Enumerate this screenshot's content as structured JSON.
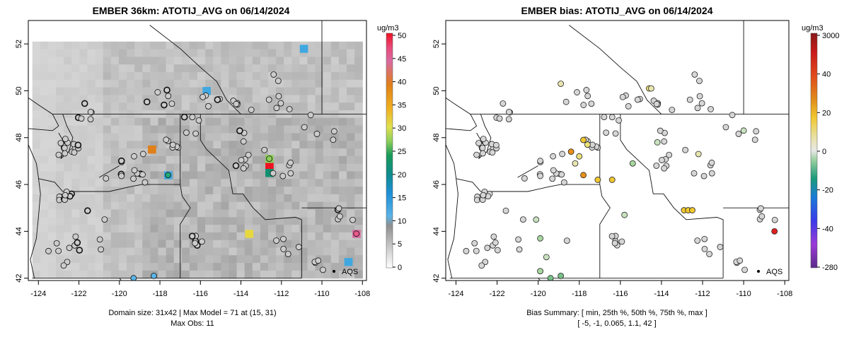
{
  "left_panel": {
    "title": "EMBER 36km: ATOTIJ_AVG on 06/14/2024",
    "colorbar_unit": "ug/m3",
    "colorbar_ticks": [
      "50",
      "45",
      "40",
      "35",
      "30",
      "25",
      "20",
      "15",
      "10",
      "5",
      "0"
    ],
    "caption_line1": "Domain size: 31x42 | Max Model = 71 at (15, 31)",
    "caption_line2": "Max Obs: 11",
    "network_label": "AQS"
  },
  "right_panel": {
    "title": "EMBER bias: ATOTIJ_AVG on 06/14/2024",
    "colorbar_unit": "ug/m3",
    "colorbar_ticks": [
      "3000",
      "40",
      "20",
      "0",
      "-20",
      "-40",
      "-280"
    ],
    "caption_line1": "Bias Summary: [ min, 25th %, 50th %, 75th %, max ]",
    "caption_line2": "[ -5,   -1,   0.065,   1.1,   42 ]",
    "network_label": "AQS"
  },
  "colors": {
    "land": "#d3d3d3",
    "point_face": "#cccccc",
    "border": "#222222"
  },
  "chart_data": [
    {
      "type": "heatmap",
      "title": "EMBER 36km: ATOTIJ_AVG on 06/14/2024",
      "x_ticks": [
        "-124",
        "-122",
        "-120",
        "-118",
        "-116",
        "-114",
        "-112",
        "-110",
        "-108"
      ],
      "y_ticks": [
        "42",
        "44",
        "46",
        "48",
        "50",
        "52"
      ],
      "xlim": [
        -124.5,
        -107.8
      ],
      "ylim": [
        41.9,
        53.0
      ],
      "colorbar_range": [
        0,
        50
      ],
      "grid": [
        31,
        42
      ],
      "max_model": 71,
      "max_model_cell": [
        15,
        31
      ],
      "max_obs": 11,
      "hotspots": [
        {
          "lon": -118.4,
          "lat": 47.5,
          "value": 35
        },
        {
          "lon": -117.6,
          "lat": 46.4,
          "value": 15
        },
        {
          "lon": -112.6,
          "lat": 46.8,
          "value": 48
        },
        {
          "lon": -112.6,
          "lat": 47.1,
          "value": 26
        },
        {
          "lon": -112.6,
          "lat": 46.5,
          "value": 20
        },
        {
          "lon": -113.6,
          "lat": 43.9,
          "value": 29
        },
        {
          "lon": -108.3,
          "lat": 43.9,
          "value": 42
        },
        {
          "lon": -108.7,
          "lat": 42.7,
          "value": 13
        },
        {
          "lon": -115.7,
          "lat": 50.0,
          "value": 13
        },
        {
          "lon": -110.9,
          "lat": 51.8,
          "value": 13
        }
      ]
    },
    {
      "type": "scatter",
      "title": "EMBER bias: ATOTIJ_AVG on 06/14/2024",
      "x_ticks": [
        "-124",
        "-122",
        "-120",
        "-118",
        "-116",
        "-114",
        "-112",
        "-110",
        "-108"
      ],
      "y_ticks": [
        "42",
        "44",
        "46",
        "48",
        "50",
        "52"
      ],
      "xlim": [
        -124.5,
        -107.8
      ],
      "ylim": [
        41.9,
        53.0
      ],
      "bias_summary": {
        "min": -5,
        "p25": -1,
        "p50": 0.065,
        "p75": 1.1,
        "max": 42
      },
      "points": [
        [
          -118.4,
          47.4,
          10
        ],
        [
          -117.8,
          46.4,
          12
        ],
        [
          -117.1,
          46.2,
          8
        ],
        [
          -116.4,
          46.2,
          6
        ],
        [
          -117.8,
          47.9,
          6
        ],
        [
          -117.6,
          47.7,
          4
        ],
        [
          -118.0,
          47.2,
          3
        ],
        [
          -118.2,
          46.9,
          2
        ],
        [
          -108.5,
          44.0,
          42
        ],
        [
          -112.9,
          44.9,
          9
        ],
        [
          -112.7,
          44.9,
          8
        ],
        [
          -112.5,
          44.9,
          7
        ],
        [
          -114.6,
          50.1,
          3
        ],
        [
          -114.5,
          50.1,
          2
        ],
        [
          -118.9,
          50.3,
          1
        ],
        [
          -118.9,
          42.1,
          -4
        ],
        [
          -119.4,
          42.0,
          -3
        ],
        [
          -119.9,
          42.3,
          -2
        ],
        [
          -119.9,
          43.7,
          -2
        ],
        [
          -120.1,
          44.5,
          -1
        ],
        [
          -119.6,
          42.9,
          -1
        ],
        [
          -114.2,
          47.8,
          -1
        ],
        [
          -115.4,
          46.9,
          -2
        ],
        [
          -110.0,
          48.3,
          -1
        ],
        [
          -112.2,
          47.3,
          1
        ],
        [
          -115.8,
          44.7,
          -1
        ],
        [
          -118.6,
          43.6,
          0
        ]
      ]
    }
  ]
}
